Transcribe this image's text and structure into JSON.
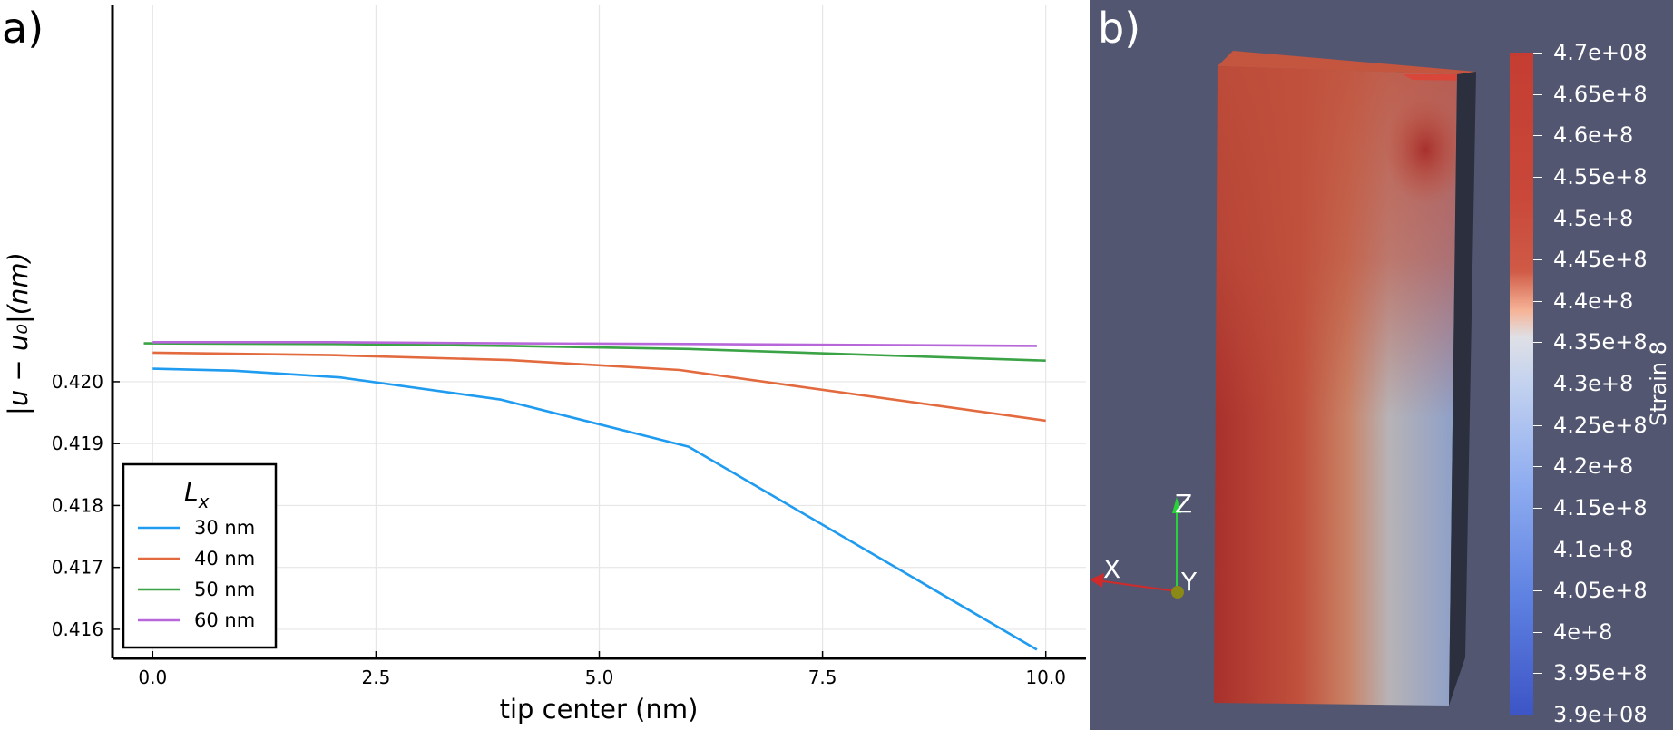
{
  "panel_a_label": "a)",
  "panel_b_label": "b)",
  "chart_data": [
    {
      "type": "line",
      "xlabel": "tip center (nm)",
      "ylabel": "|u − u₀|(nm)",
      "xlim": [
        -0.45,
        10.45
      ],
      "ylim": [
        0.41553,
        0.42608
      ],
      "xticks": [
        0.0,
        2.5,
        5.0,
        7.5,
        10.0
      ],
      "xtick_labels": [
        "0.0",
        "2.5",
        "5.0",
        "7.5",
        "10.0"
      ],
      "yticks": [
        0.416,
        0.417,
        0.418,
        0.419,
        0.42
      ],
      "ytick_labels": [
        "0.416",
        "0.417",
        "0.418",
        "0.419",
        "0.420"
      ],
      "grid": true,
      "legend_title": "L",
      "legend_title_sub": "x",
      "legend_position": "bottom-left",
      "series": [
        {
          "name": "30 nm",
          "color": "#1f9bef",
          "x": [
            0.0,
            0.9,
            2.1,
            3.9,
            6.0,
            9.9
          ],
          "y": [
            0.42021,
            0.42018,
            0.42007,
            0.41971,
            0.41895,
            0.41567
          ]
        },
        {
          "name": "40 nm",
          "color": "#e26a3e",
          "x": [
            0.0,
            2.0,
            4.0,
            5.9,
            10.0
          ],
          "y": [
            0.42047,
            0.42043,
            0.42035,
            0.42019,
            0.41937
          ]
        },
        {
          "name": "50 nm",
          "color": "#3aa345",
          "x": [
            -0.1,
            2.0,
            4.0,
            6.0,
            10.0
          ],
          "y": [
            0.42062,
            0.42061,
            0.42058,
            0.42053,
            0.42034
          ]
        },
        {
          "name": "60 nm",
          "color": "#b767d9",
          "x": [
            0.0,
            2.0,
            4.0,
            6.0,
            9.9
          ],
          "y": [
            0.42064,
            0.42064,
            0.42062,
            0.42061,
            0.42058
          ]
        }
      ]
    },
    {
      "type": "heatmap",
      "colorbar_title": "Strain 8",
      "colorbar_range": [
        390000000.0,
        470000000.0
      ],
      "colorbar_ticks": [
        470000000.0,
        465000000.0,
        460000000.0,
        455000000.0,
        450000000.0,
        445000000.0,
        440000000.0,
        435000000.0,
        430000000.0,
        425000000.0,
        420000000.0,
        415000000.0,
        410000000.0,
        405000000.0,
        400000000.0,
        395000000.0,
        390000000.0
      ],
      "colorbar_tick_labels": [
        "4.7e+08",
        "4.65e+8",
        "4.6e+8",
        "4.55e+8",
        "4.5e+8",
        "4.45e+8",
        "4.4e+8",
        "4.35e+8",
        "4.3e+8",
        "4.25e+8",
        "4.2e+8",
        "4.15e+8",
        "4.1e+8",
        "4.05e+8",
        "4e+8",
        "3.95e+8",
        "3.9e+08"
      ],
      "colors": {
        "high": "#c53d32",
        "mid": "#dfe0e6",
        "low": "#3d55c6",
        "background": "#525670"
      },
      "axes_labels": {
        "x": "X",
        "y": "Y",
        "z": "Z"
      }
    }
  ]
}
